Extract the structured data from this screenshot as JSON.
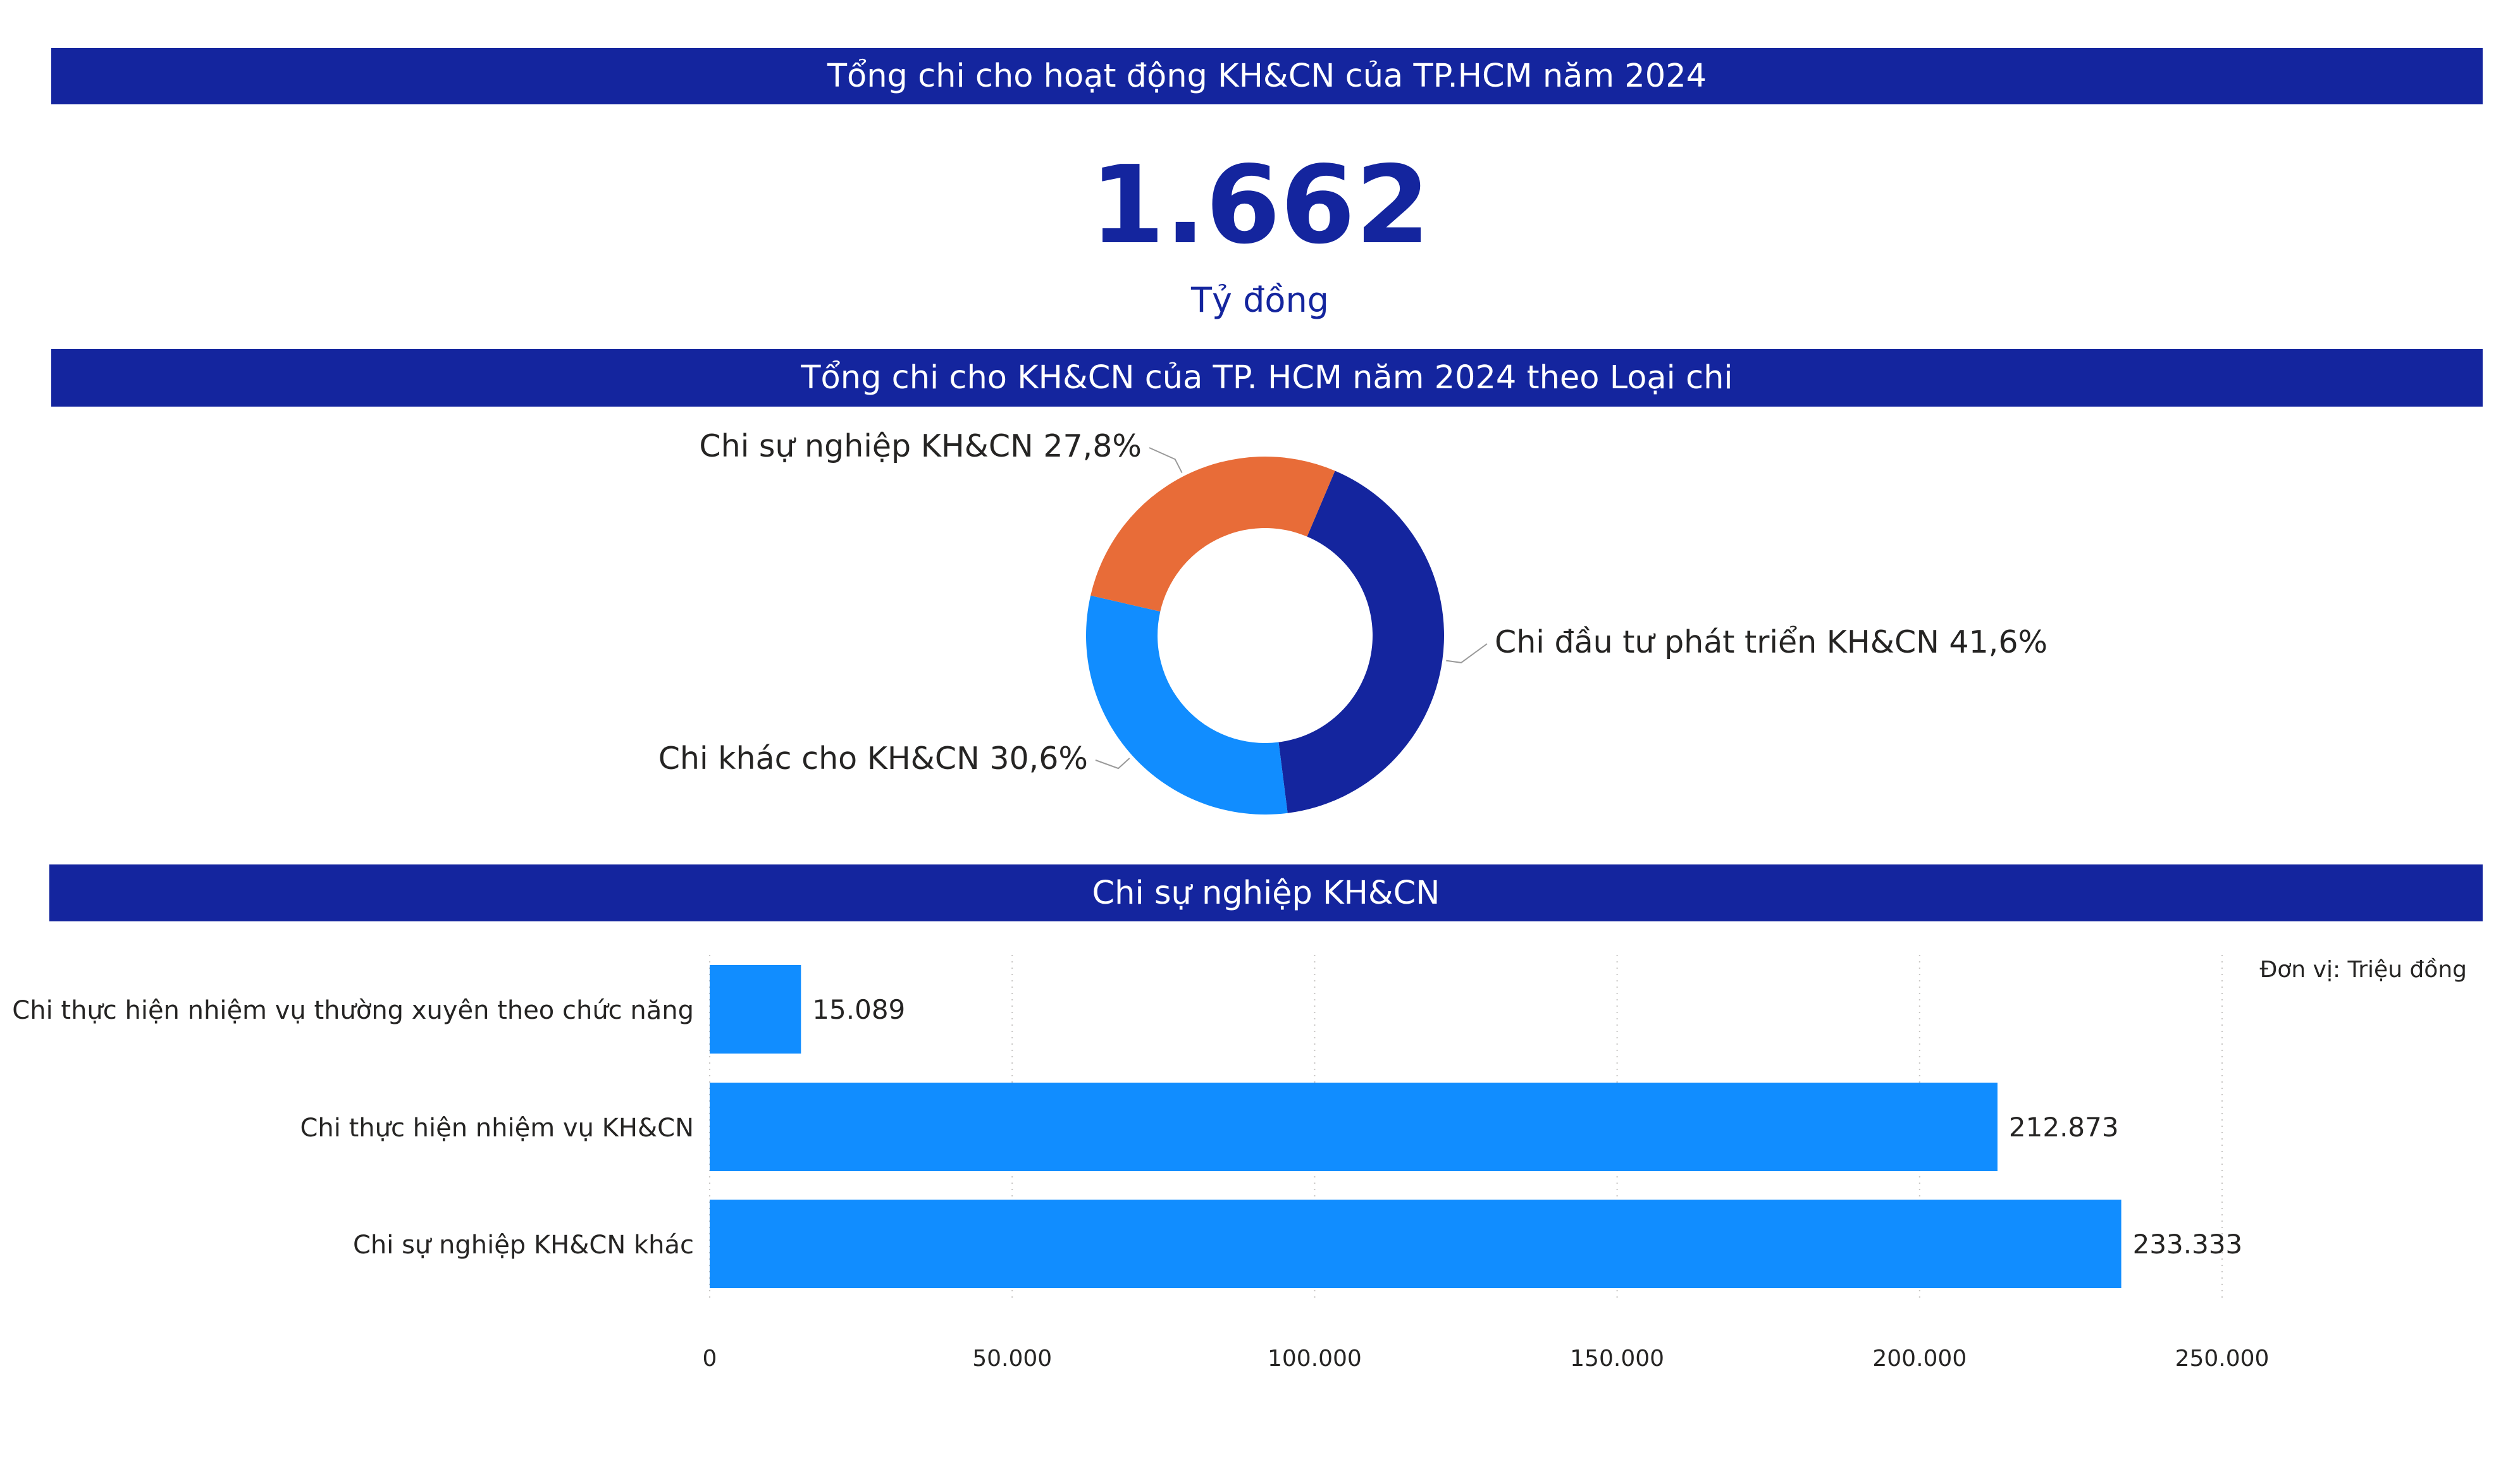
{
  "header": {
    "title": "Tổng chi cho hoạt động KH&CN của TP.HCM năm 2024"
  },
  "kpi": {
    "value": "1.662",
    "unit": "Tỷ đồng"
  },
  "donut_section": {
    "title": "Tổng chi cho KH&CN của TP. HCM năm 2024 theo Loại chi"
  },
  "bar_section": {
    "title": "Chi sự nghiệp KH&CN",
    "unit_note": "Đơn vị: Triệu đồng"
  },
  "colors": {
    "banner": "#14259e",
    "dark_blue": "#14259e",
    "orange": "#e86c38",
    "light_blue": "#118dff"
  },
  "chart_data": [
    {
      "type": "pie",
      "categories": [
        "Chi đầu tư phát triển KH&CN",
        "Chi khác cho KH&CN",
        "Chi sự nghiệp KH&CN"
      ],
      "values": [
        41.6,
        30.6,
        27.8
      ],
      "labels": [
        "Chi đầu tư phát triển KH&CN 41,6%",
        "Chi khác cho KH&CN 30,6%",
        "Chi sự nghiệp KH&CN 27,8%"
      ],
      "colors": [
        "#14259e",
        "#118dff",
        "#e86c38"
      ]
    },
    {
      "type": "bar",
      "orientation": "horizontal",
      "categories": [
        "Chi thực hiện nhiệm vụ thường xuyên theo chức năng",
        "Chi thực hiện nhiệm vụ KH&CN",
        "Chi sự nghiệp KH&CN khác"
      ],
      "values": [
        15089,
        212873,
        233333
      ],
      "value_labels": [
        "15.089",
        "212.873",
        "233.333"
      ],
      "xlim": [
        0,
        250000
      ],
      "xticks": [
        0,
        50000,
        100000,
        150000,
        200000,
        250000
      ],
      "xtick_labels": [
        "0",
        "50.000",
        "100.000",
        "150.000",
        "200.000",
        "250.000"
      ],
      "color": "#118dff",
      "grid": true
    }
  ]
}
